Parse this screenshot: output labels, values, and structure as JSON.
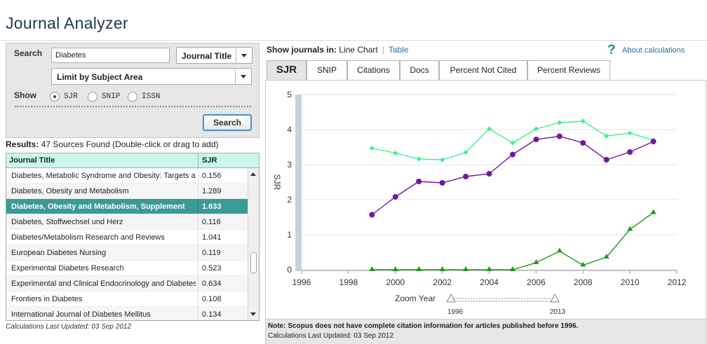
{
  "app": {
    "title": "Journal Analyzer"
  },
  "search": {
    "label": "Search",
    "query": "Diabetes",
    "field_select": "Journal Title",
    "subject_select": "Limit by Subject Area",
    "show_label": "Show",
    "options": [
      {
        "label": "SJR",
        "selected": true
      },
      {
        "label": "SNIP",
        "selected": false
      },
      {
        "label": "ISSN",
        "selected": false
      }
    ],
    "button": "Search"
  },
  "results": {
    "label": "Results:",
    "text": "47 Sources Found (Double-click or drag to add)",
    "columns": [
      "Journal Title",
      "SJR"
    ],
    "rows": [
      {
        "title": "Diabetes, Metabolic Syndrome and Obesity: Targets and Therapy",
        "sjr": "0.156",
        "selected": false
      },
      {
        "title": "Diabetes, Obesity and Metabolism",
        "sjr": "1.289",
        "selected": false
      },
      {
        "title": "Diabetes, Obesity and Metabolism, Supplement",
        "sjr": "1.633",
        "selected": true
      },
      {
        "title": "Diabetes, Stoffwechsel und Herz",
        "sjr": "0.116",
        "selected": false
      },
      {
        "title": "Diabetes/Metabolism Research and Reviews",
        "sjr": "1.041",
        "selected": false
      },
      {
        "title": "European Diabetes Nursing",
        "sjr": "0.119",
        "selected": false
      },
      {
        "title": "Experimental Diabetes Research",
        "sjr": "0.523",
        "selected": false
      },
      {
        "title": "Experimental and Clinical Endocrinology and Diabetes",
        "sjr": "0.634",
        "selected": false
      },
      {
        "title": "Frontiers in Diabetes",
        "sjr": "0.108",
        "selected": false
      },
      {
        "title": "International Journal of Diabetes Mellitus",
        "sjr": "0.134",
        "selected": false
      }
    ],
    "updated": "Calculations Last Updated: 03 Sep 2012"
  },
  "view": {
    "label": "Show journals in:",
    "current": "Line Chart",
    "alternate": "Table",
    "about": "About calculations",
    "help_glyph": "?"
  },
  "tabs": [
    "SJR",
    "SNIP",
    "Citations",
    "Docs",
    "Percent Not Cited",
    "Percent Reviews"
  ],
  "active_tab": "SJR",
  "chart_data": {
    "type": "line",
    "ylabel": "SJR",
    "xlim": [
      1996,
      2012
    ],
    "ylim": [
      0,
      5
    ],
    "x_ticks": [
      1996,
      1998,
      2000,
      2002,
      2004,
      2006,
      2008,
      2010,
      2012
    ],
    "y_ticks": [
      0,
      1,
      2,
      3,
      4,
      5
    ],
    "grid": "horizontal",
    "series": [
      {
        "color": "#3ef08c",
        "marker": "diamond",
        "x": [
          1999,
          2000,
          2001,
          2002,
          2003,
          2004,
          2005,
          2006,
          2007,
          2008,
          2009,
          2010,
          2011
        ],
        "y": [
          3.47,
          3.33,
          3.16,
          3.14,
          3.35,
          4.02,
          3.62,
          4.02,
          4.2,
          4.24,
          3.82,
          3.9,
          3.7
        ]
      },
      {
        "color": "#6e1a9e",
        "marker": "circle",
        "x": [
          1999,
          2000,
          2001,
          2002,
          2003,
          2004,
          2005,
          2006,
          2007,
          2008,
          2009,
          2010,
          2011
        ],
        "y": [
          1.57,
          2.08,
          2.52,
          2.48,
          2.66,
          2.74,
          3.29,
          3.72,
          3.81,
          3.62,
          3.14,
          3.36,
          3.66
        ]
      },
      {
        "color": "#1e9a1e",
        "marker": "triangle",
        "x": [
          1999,
          2000,
          2001,
          2002,
          2003,
          2004,
          2005,
          2006,
          2007,
          2008,
          2009,
          2010,
          2011
        ],
        "y": [
          0,
          0,
          0,
          0,
          0,
          0,
          0,
          0.2,
          0.53,
          0.13,
          0.36,
          1.15,
          1.63
        ]
      }
    ],
    "zoom": {
      "label": "Zoom Year",
      "start": 1996,
      "end": 2013
    }
  },
  "note": {
    "line1": "Note: Scopus does not have complete citation information for articles published before 1996.",
    "line2": "Calculations Last Updated: 03 Sep 2012"
  }
}
